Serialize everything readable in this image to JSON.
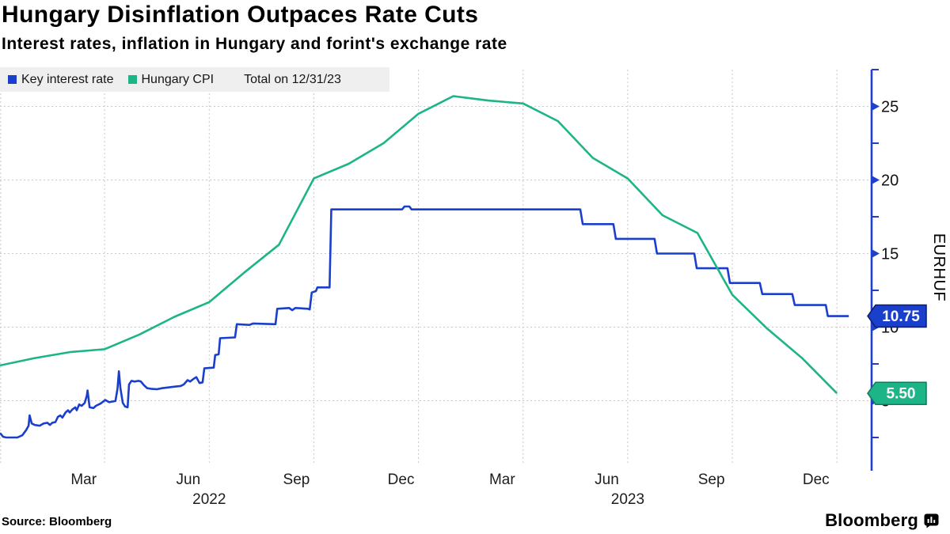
{
  "page": {
    "title": "Hungary Disinflation Outpaces Rate Cuts",
    "subtitle": "Interest rates, inflation in Hungary and forint's exchange rate",
    "source": "Source: Bloomberg",
    "brand": "Bloomberg"
  },
  "legend": {
    "items": [
      {
        "label": "Key interest rate",
        "color": "#1a3fcc"
      },
      {
        "label": "Hungary CPI",
        "color": "#1db588"
      }
    ],
    "note": "Total on 12/31/23"
  },
  "colors": {
    "axis_blue": "#2040cc",
    "grid_gray": "#c9c9c9",
    "legend_bg": "#efefef",
    "text_black": "#111111"
  },
  "chart_data": {
    "type": "line",
    "title": "Hungary Disinflation Outpaces Rate Cuts",
    "subtitle": "Interest rates, inflation in Hungary and forint's exchange rate",
    "x_axis": {
      "unit": "months since Jan 1 2022",
      "tick_labels": [
        {
          "label": "Mar",
          "t": 2.4
        },
        {
          "label": "Jun",
          "t": 5.4
        },
        {
          "label": "Sep",
          "t": 8.5
        },
        {
          "label": "Dec",
          "t": 11.5
        },
        {
          "label": "Mar",
          "t": 14.4
        },
        {
          "label": "Jun",
          "t": 17.4
        },
        {
          "label": "Sep",
          "t": 20.4
        },
        {
          "label": "Dec",
          "t": 23.4
        }
      ],
      "year_labels": [
        {
          "label": "2022",
          "t": 6
        },
        {
          "label": "2023",
          "t": 18
        }
      ]
    },
    "y_axis": {
      "label": "EURHUF",
      "side": "right",
      "tick_values": [
        25,
        20,
        15,
        10,
        5
      ],
      "minor_tick_values": [
        27.5,
        22.5,
        17.5,
        12.5,
        7.5,
        2.5
      ],
      "range": [
        0.2,
        27.5
      ],
      "grid": true
    },
    "grid": {
      "horizontal_values": [
        25,
        20,
        15,
        10,
        5
      ],
      "vertical_months": [
        0,
        3,
        6,
        9,
        12,
        15,
        18,
        21,
        24
      ]
    },
    "end_labels": [
      {
        "text": "10.75",
        "value": 10.75,
        "series": "Key interest rate",
        "fill": "#1a3fcc",
        "border": "#0a1e66"
      },
      {
        "text": "5.50",
        "value": 5.5,
        "series": "Hungary CPI",
        "fill": "#1db588",
        "border": "#0e7a5c"
      }
    ],
    "legend_position": "top-left",
    "series": [
      {
        "name": "Key interest rate",
        "color": "#1a3fcc",
        "points": [
          [
            0,
            2.8
          ],
          [
            0.09,
            2.55
          ],
          [
            0.18,
            2.5
          ],
          [
            0.5,
            2.5
          ],
          [
            0.64,
            2.65
          ],
          [
            0.75,
            3.0
          ],
          [
            0.82,
            3.3
          ],
          [
            0.85,
            4.0
          ],
          [
            0.91,
            3.45
          ],
          [
            1.0,
            3.35
          ],
          [
            1.14,
            3.3
          ],
          [
            1.25,
            3.45
          ],
          [
            1.36,
            3.5
          ],
          [
            1.43,
            3.35
          ],
          [
            1.5,
            3.5
          ],
          [
            1.59,
            3.55
          ],
          [
            1.66,
            3.9
          ],
          [
            1.73,
            4.0
          ],
          [
            1.79,
            3.85
          ],
          [
            1.88,
            4.2
          ],
          [
            1.95,
            4.35
          ],
          [
            2.0,
            4.2
          ],
          [
            2.07,
            4.4
          ],
          [
            2.16,
            4.55
          ],
          [
            2.2,
            4.35
          ],
          [
            2.27,
            4.75
          ],
          [
            2.34,
            4.65
          ],
          [
            2.43,
            4.85
          ],
          [
            2.49,
            5.35
          ],
          [
            2.51,
            5.7
          ],
          [
            2.57,
            4.55
          ],
          [
            2.68,
            4.5
          ],
          [
            2.75,
            4.65
          ],
          [
            2.88,
            4.8
          ],
          [
            3.02,
            5.05
          ],
          [
            3.13,
            4.9
          ],
          [
            3.31,
            4.98
          ],
          [
            3.37,
            5.8
          ],
          [
            3.41,
            7.0
          ],
          [
            3.45,
            5.9
          ],
          [
            3.52,
            4.85
          ],
          [
            3.59,
            4.6
          ],
          [
            3.66,
            4.55
          ],
          [
            3.7,
            6.1
          ],
          [
            3.77,
            6.35
          ],
          [
            3.86,
            6.3
          ],
          [
            3.97,
            6.35
          ],
          [
            4.04,
            6.3
          ],
          [
            4.13,
            6.05
          ],
          [
            4.22,
            5.85
          ],
          [
            4.36,
            5.8
          ],
          [
            4.5,
            5.78
          ],
          [
            4.65,
            5.85
          ],
          [
            4.81,
            5.9
          ],
          [
            4.99,
            5.95
          ],
          [
            5.18,
            6.0
          ],
          [
            5.27,
            6.1
          ],
          [
            5.38,
            6.4
          ],
          [
            5.45,
            6.3
          ],
          [
            5.56,
            6.5
          ],
          [
            5.63,
            6.6
          ],
          [
            5.72,
            6.2
          ],
          [
            5.81,
            6.25
          ],
          [
            5.86,
            7.2
          ],
          [
            6.13,
            7.25
          ],
          [
            6.17,
            8.1
          ],
          [
            6.27,
            8.15
          ],
          [
            6.31,
            9.25
          ],
          [
            6.74,
            9.3
          ],
          [
            6.79,
            10.2
          ],
          [
            7.15,
            10.15
          ],
          [
            7.26,
            10.25
          ],
          [
            7.9,
            10.2
          ],
          [
            7.95,
            11.25
          ],
          [
            8.29,
            11.3
          ],
          [
            8.38,
            11.15
          ],
          [
            8.47,
            11.3
          ],
          [
            8.83,
            11.25
          ],
          [
            8.88,
            11.2
          ],
          [
            8.94,
            12.35
          ],
          [
            9.06,
            12.45
          ],
          [
            9.1,
            12.7
          ],
          [
            9.45,
            12.7
          ],
          [
            9.5,
            18.0
          ],
          [
            11.53,
            18.0
          ],
          [
            11.6,
            18.2
          ],
          [
            11.74,
            18.2
          ],
          [
            11.8,
            18.0
          ],
          [
            16.64,
            18.0
          ],
          [
            16.71,
            17.0
          ],
          [
            17.59,
            17.0
          ],
          [
            17.66,
            16.0
          ],
          [
            18.77,
            16.0
          ],
          [
            18.84,
            15.0
          ],
          [
            19.91,
            15.0
          ],
          [
            19.98,
            14.0
          ],
          [
            20.86,
            14.0
          ],
          [
            20.93,
            13.0
          ],
          [
            21.79,
            13.0
          ],
          [
            21.86,
            12.25
          ],
          [
            22.72,
            12.25
          ],
          [
            22.79,
            11.5
          ],
          [
            23.68,
            11.5
          ],
          [
            23.74,
            10.75
          ],
          [
            24.34,
            10.75
          ]
        ]
      },
      {
        "name": "Hungary CPI",
        "color": "#1db588",
        "points": [
          [
            0,
            7.4
          ],
          [
            1,
            7.9
          ],
          [
            2,
            8.3
          ],
          [
            3,
            8.5
          ],
          [
            4,
            9.5
          ],
          [
            5,
            10.7
          ],
          [
            6,
            11.7
          ],
          [
            7,
            13.7
          ],
          [
            8,
            15.6
          ],
          [
            9,
            20.1
          ],
          [
            10,
            21.1
          ],
          [
            11,
            22.5
          ],
          [
            12,
            24.5
          ],
          [
            13,
            25.7
          ],
          [
            14,
            25.4
          ],
          [
            15,
            25.2
          ],
          [
            16,
            24.0
          ],
          [
            17,
            21.5
          ],
          [
            18,
            20.1
          ],
          [
            19,
            17.6
          ],
          [
            20,
            16.4
          ],
          [
            21,
            12.2
          ],
          [
            22,
            9.9
          ],
          [
            23,
            7.9
          ],
          [
            24,
            5.5
          ]
        ]
      }
    ]
  }
}
